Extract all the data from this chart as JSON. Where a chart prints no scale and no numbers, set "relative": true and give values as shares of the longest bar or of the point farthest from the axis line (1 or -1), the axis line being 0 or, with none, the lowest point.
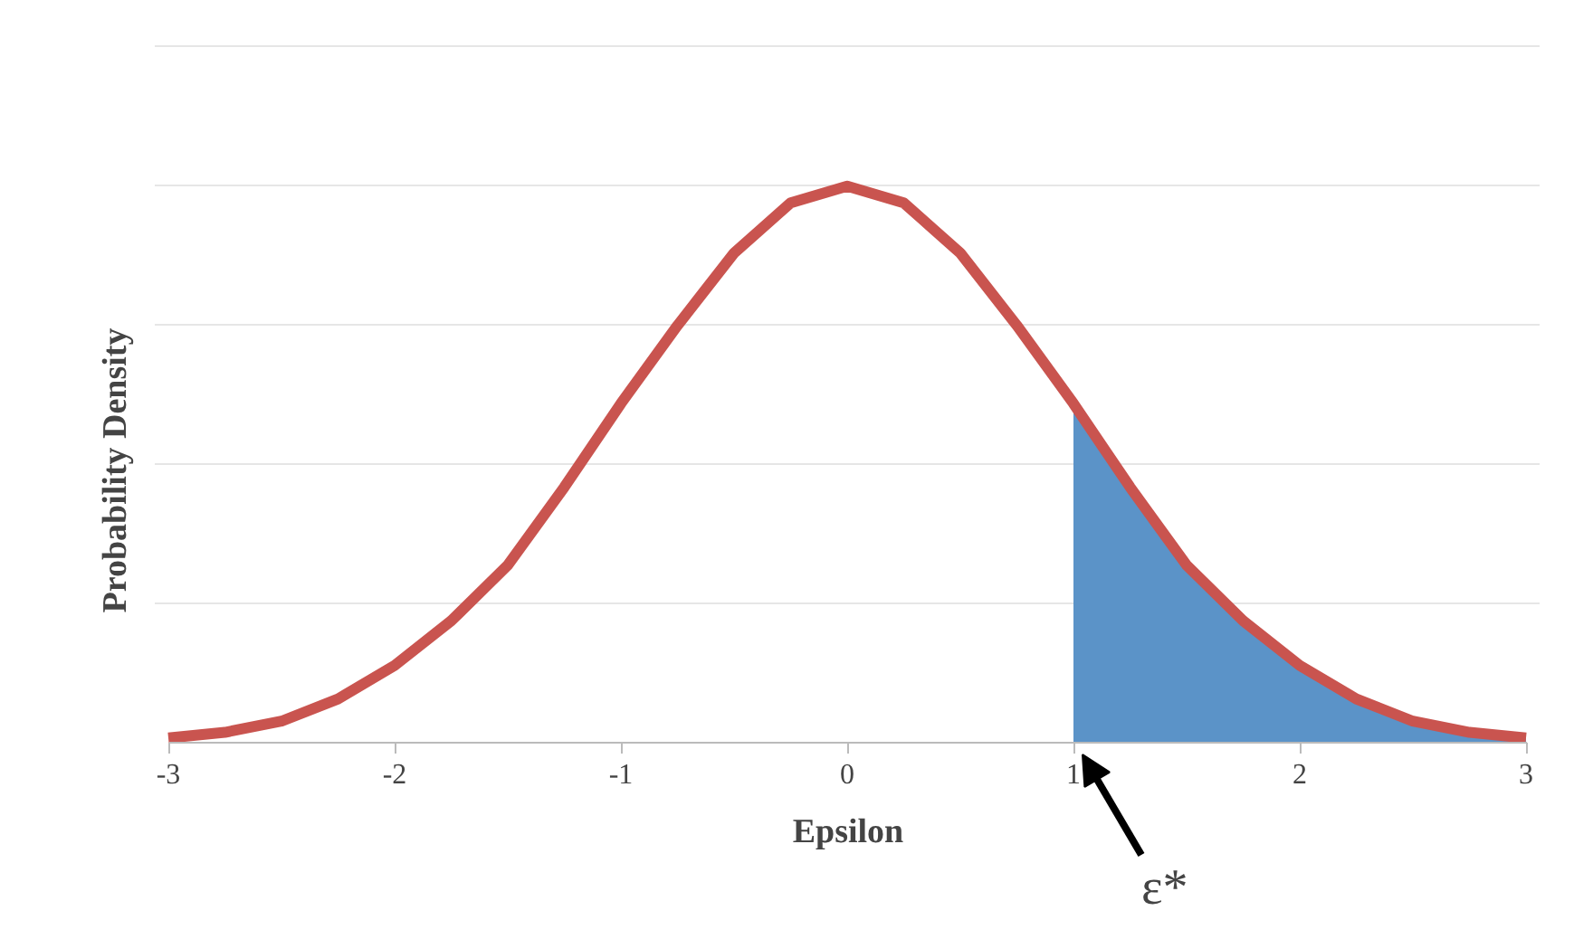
{
  "chart_data": {
    "type": "line",
    "relative": true,
    "xlabel": "Epsilon",
    "ylabel": "Probability Density",
    "xlim": [
      -3,
      3
    ],
    "xticks": [
      -3,
      -2,
      -1,
      0,
      1,
      2,
      3
    ],
    "grid": "y",
    "marker": "none",
    "line_style": "solid",
    "series": [
      {
        "type": "area",
        "color": "#5b93c8",
        "x": [
          1,
          1.25,
          1.5,
          1.75,
          2,
          2.25,
          2.5,
          2.75,
          3
        ],
        "values": [
          0.61,
          0.46,
          0.32,
          0.22,
          0.14,
          0.08,
          0.04,
          0.02,
          0.01
        ]
      },
      {
        "type": "line",
        "color": "#c9544f",
        "x": [
          -3,
          -2.75,
          -2.5,
          -2.25,
          -2,
          -1.75,
          -1.5,
          -1.25,
          -1,
          -0.75,
          -0.5,
          -0.25,
          0,
          0.25,
          0.5,
          0.75,
          1,
          1.25,
          1.5,
          1.75,
          2,
          2.25,
          2.5,
          2.75,
          3
        ],
        "values": [
          0.01,
          0.02,
          0.04,
          0.08,
          0.14,
          0.22,
          0.32,
          0.46,
          0.61,
          0.75,
          0.88,
          0.97,
          1,
          0.97,
          0.88,
          0.75,
          0.61,
          0.46,
          0.32,
          0.22,
          0.14,
          0.08,
          0.04,
          0.02,
          0.01
        ]
      }
    ],
    "annotations": [
      {
        "text": "ε*",
        "x": 1,
        "y": 0
      }
    ]
  }
}
